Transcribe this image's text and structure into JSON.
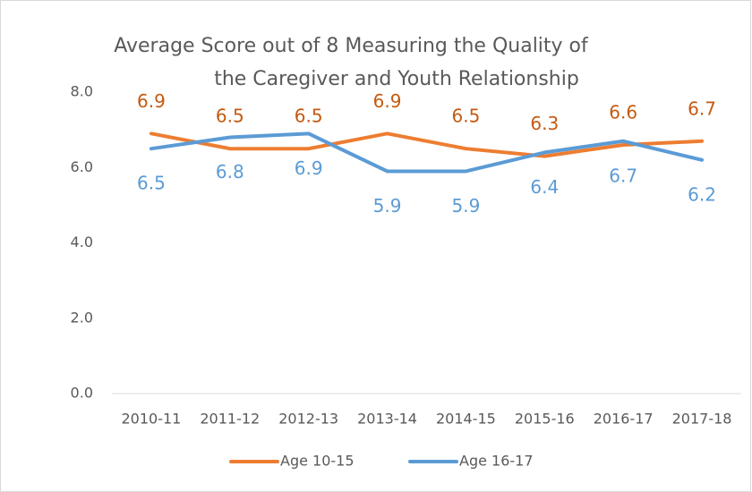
{
  "chart_data": {
    "type": "line",
    "title": [
      "Average Score out of 8 Measuring the Quality of",
      "the Caregiver and Youth Relationship"
    ],
    "categories": [
      "2010-11",
      "2011-12",
      "2012-13",
      "2013-14",
      "2014-15",
      "2015-16",
      "2016-17",
      "2017-18"
    ],
    "series": [
      {
        "name": "Age 10-15",
        "color": "#ed7d31",
        "values": [
          6.9,
          6.5,
          6.5,
          6.9,
          6.5,
          6.3,
          6.6,
          6.7
        ]
      },
      {
        "name": "Age 16-17",
        "color": "#5b9bd5",
        "values": [
          6.5,
          6.8,
          6.9,
          5.9,
          5.9,
          6.4,
          6.7,
          6.2
        ]
      }
    ],
    "ylim": [
      0,
      8
    ],
    "yticks": [
      {
        "value": 0,
        "label": "0.0"
      },
      {
        "value": 2,
        "label": "2.0"
      },
      {
        "value": 4,
        "label": "4.0"
      },
      {
        "value": 6,
        "label": "6.0"
      },
      {
        "value": 8,
        "label": "8.0"
      }
    ],
    "grid": false,
    "legend": "bottom"
  }
}
